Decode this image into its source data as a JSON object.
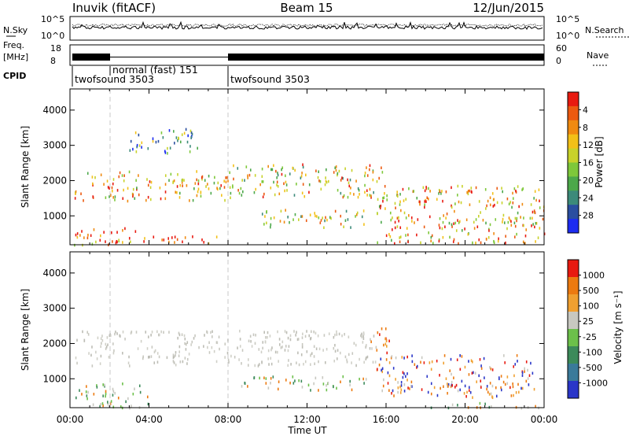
{
  "header": {
    "station": "Inuvik (fitACF)",
    "beam": "Beam 15",
    "date": "12/Jun/2015"
  },
  "side_labels": {
    "nsky": "N.Sky",
    "nsearch": "N.Search",
    "freq_line1": "Freq.",
    "freq_line2": "[MHz]",
    "nave": "Nave",
    "cpid": "CPID"
  },
  "noise_axis": {
    "left_ticks": [
      "10^5",
      "10^0"
    ],
    "right_ticks": [
      "10^5",
      "10^0"
    ]
  },
  "freq_axis": {
    "left_ticks": [
      "18",
      "8"
    ],
    "right_ticks": [
      "60",
      "0"
    ]
  },
  "cpid_segments": [
    {
      "label": "twofsound 3503",
      "start_h": 0,
      "end_h": 1.9
    },
    {
      "label": "normal (fast) 151",
      "start_h": 1.9,
      "end_h": 8.0
    },
    {
      "label": "twofsound 3503",
      "start_h": 8.0,
      "end_h": 24
    }
  ],
  "time_ticks": [
    "00:00",
    "04:00",
    "08:00",
    "12:00",
    "16:00",
    "20:00",
    "00:00"
  ],
  "xlabel": "Time UT",
  "chart_data": [
    {
      "type": "heatmap",
      "quantity": "Power",
      "ylabel": "Slant Range [km]",
      "ylim": [
        180,
        4600
      ],
      "yticks": [
        "1000",
        "2000",
        "3000",
        "4000"
      ],
      "ytick_values": [
        1000,
        2000,
        3000,
        4000
      ],
      "colorbar_label": "Power [dB]",
      "colorbar_ticks": [
        "4",
        "8",
        "12",
        "16",
        "20",
        "24",
        "28"
      ],
      "colorbar_colors": [
        "#1c2cf0",
        "#2a4ea0",
        "#3c8a7a",
        "#4ca84a",
        "#7ec83a",
        "#c8d22a",
        "#f2c018",
        "#f08a10",
        "#ec5a10",
        "#e81a10"
      ],
      "scatter_regions": [
        {
          "t0": 0.2,
          "t1": 8.0,
          "r0": 1450,
          "r1": 2300,
          "level": 0.65
        },
        {
          "t0": 8.0,
          "t1": 15.8,
          "r0": 1550,
          "r1": 2500,
          "level": 0.6
        },
        {
          "t0": 0.2,
          "t1": 3.5,
          "r0": 200,
          "r1": 700,
          "level": 0.8
        },
        {
          "t0": 9.5,
          "t1": 15.0,
          "r0": 700,
          "r1": 1200,
          "level": 0.55
        },
        {
          "t0": 15.5,
          "t1": 24,
          "r0": 250,
          "r1": 1900,
          "level": 0.7
        },
        {
          "t0": 2.0,
          "t1": 7.8,
          "r0": 250,
          "r1": 450,
          "level": 0.9
        },
        {
          "t0": 3.0,
          "t1": 6.5,
          "r0": 2800,
          "r1": 3500,
          "level": 0.3
        }
      ]
    },
    {
      "type": "heatmap",
      "quantity": "Velocity",
      "ylabel": "Slant Range [km]",
      "ylim": [
        180,
        4600
      ],
      "yticks": [
        "1000",
        "2000",
        "3000",
        "4000"
      ],
      "ytick_values": [
        1000,
        2000,
        3000,
        4000
      ],
      "colorbar_label": "Velocity [m s⁻¹]",
      "colorbar_ticks": [
        "1000",
        "500",
        "100",
        "25",
        "-25",
        "-100",
        "-500",
        "-1000"
      ],
      "colorbar_colors": [
        "#2a36c8",
        "#3a7a9a",
        "#3c8a5a",
        "#6cc04a",
        "#c8c8c0",
        "#f0a030",
        "#ec7a10",
        "#e81a10"
      ],
      "scatter_regions": [
        {
          "t0": 0.2,
          "t1": 15.5,
          "r0": 1400,
          "r1": 2400,
          "cls": "grey"
        },
        {
          "t0": 0.2,
          "t1": 4.0,
          "r0": 200,
          "r1": 900,
          "cls": "green"
        },
        {
          "t0": 15.2,
          "t1": 16.2,
          "r0": 1700,
          "r1": 2500,
          "cls": "red"
        },
        {
          "t0": 15.5,
          "t1": 23.5,
          "r0": 500,
          "r1": 1700,
          "cls": "orange"
        },
        {
          "t0": 8.5,
          "t1": 15.0,
          "r0": 700,
          "r1": 1100,
          "cls": "green"
        },
        {
          "t0": 18.0,
          "t1": 24.0,
          "r0": 200,
          "r1": 350,
          "cls": "green"
        }
      ]
    }
  ]
}
